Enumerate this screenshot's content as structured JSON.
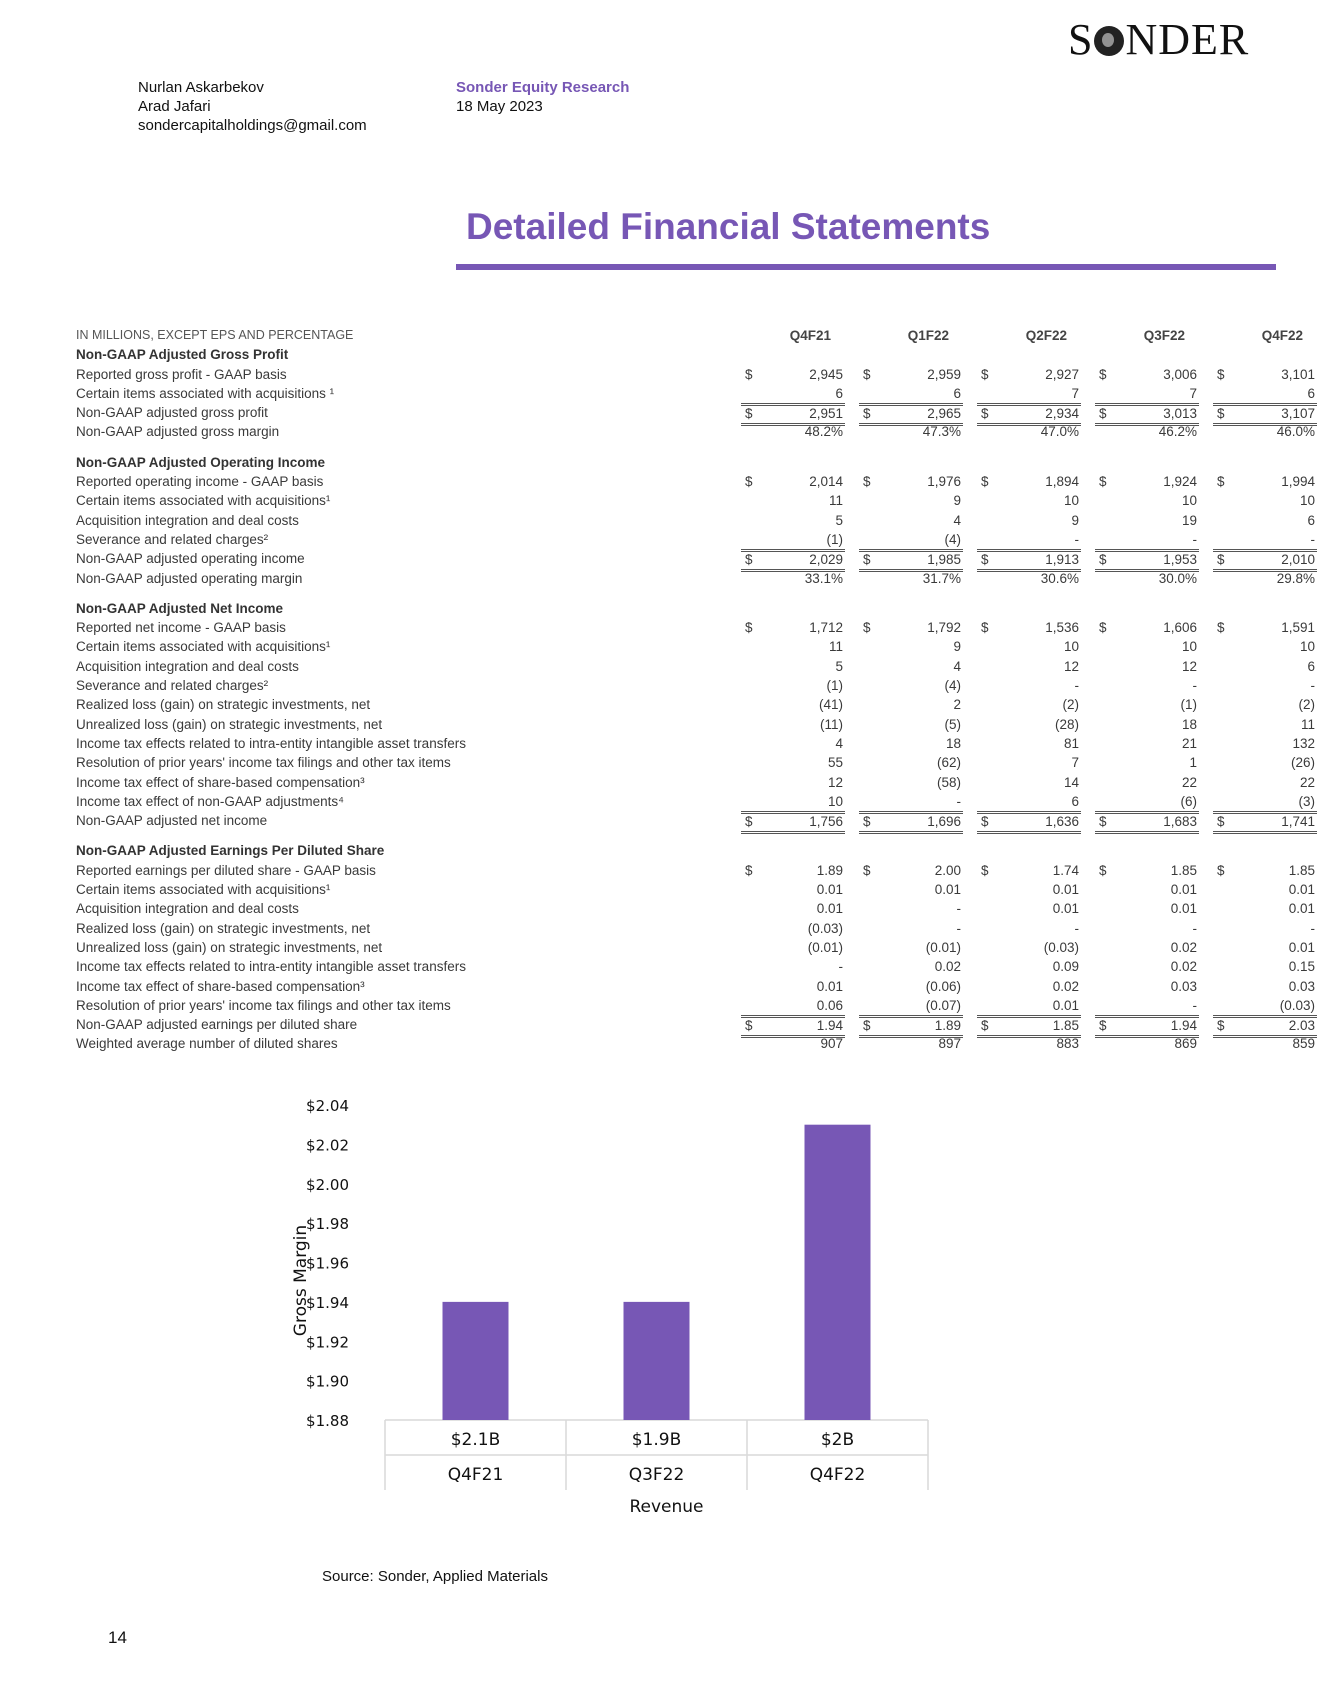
{
  "logo": {
    "text_left": "S",
    "text_right": "NDER"
  },
  "header": {
    "authors": [
      "Nurlan Askarbekov",
      "Arad Jafari",
      "sondercapitalholdings@gmail.com"
    ],
    "brand": "Sonder Equity Research",
    "date": "18 May 2023"
  },
  "title": "Detailed Financial Statements",
  "table": {
    "units_label": "IN MILLIONS, EXCEPT EPS AND PERCENTAGE",
    "quarters": [
      "Q4F21",
      "Q1F22",
      "Q2F22",
      "Q3F22",
      "Q4F22"
    ],
    "sections": [
      {
        "heading": "Non-GAAP Adjusted Gross Profit",
        "rows": [
          {
            "label": "Reported gross profit - GAAP basis",
            "values": [
              "2,945",
              "2,959",
              "2,927",
              "3,006",
              "3,101"
            ],
            "dollar": true
          },
          {
            "label": "Certain items associated with acquisitions ¹",
            "values": [
              "6",
              "6",
              "7",
              "7",
              "6"
            ],
            "style": "ul"
          },
          {
            "label": "Non-GAAP adjusted gross profit",
            "values": [
              "2,951",
              "2,965",
              "2,934",
              "3,013",
              "3,107"
            ],
            "dollar": true,
            "style": "tot"
          },
          {
            "label": "Non-GAAP adjusted gross margin",
            "values": [
              "48.2%",
              "47.3%",
              "47.0%",
              "46.2%",
              "46.0%"
            ]
          }
        ]
      },
      {
        "heading": "Non-GAAP Adjusted Operating Income",
        "rows": [
          {
            "label": "Reported operating income - GAAP basis",
            "values": [
              "2,014",
              "1,976",
              "1,894",
              "1,924",
              "1,994"
            ],
            "dollar": true
          },
          {
            "label": "Certain items associated with acquisitions¹",
            "values": [
              "11",
              "9",
              "10",
              "10",
              "10"
            ]
          },
          {
            "label": "Acquisition integration and deal costs",
            "values": [
              "5",
              "4",
              "9",
              "19",
              "6"
            ]
          },
          {
            "label": "Severance and related charges²",
            "values": [
              "(1)",
              "(4)",
              "-",
              "-",
              "-"
            ],
            "style": "ul"
          },
          {
            "label": "Non-GAAP adjusted operating income",
            "values": [
              "2,029",
              "1,985",
              "1,913",
              "1,953",
              "2,010"
            ],
            "dollar": true,
            "style": "tot"
          },
          {
            "label": "Non-GAAP adjusted operating margin",
            "values": [
              "33.1%",
              "31.7%",
              "30.6%",
              "30.0%",
              "29.8%"
            ]
          }
        ]
      },
      {
        "heading": "Non-GAAP Adjusted Net Income",
        "rows": [
          {
            "label": "Reported net income - GAAP basis",
            "values": [
              "1,712",
              "1,792",
              "1,536",
              "1,606",
              "1,591"
            ],
            "dollar": true
          },
          {
            "label": "Certain items associated with acquisitions¹",
            "values": [
              "11",
              "9",
              "10",
              "10",
              "10"
            ]
          },
          {
            "label": "Acquisition integration and deal costs",
            "values": [
              "5",
              "4",
              "12",
              "12",
              "6"
            ]
          },
          {
            "label": "Severance and related charges²",
            "values": [
              "(1)",
              "(4)",
              "-",
              "-",
              "-"
            ]
          },
          {
            "label": "Realized loss (gain) on strategic investments, net",
            "values": [
              "(41)",
              "2",
              "(2)",
              "(1)",
              "(2)"
            ]
          },
          {
            "label": "Unrealized loss (gain) on strategic investments, net",
            "values": [
              "(11)",
              "(5)",
              "(28)",
              "18",
              "11"
            ]
          },
          {
            "label": "Income tax effects related to intra-entity intangible asset transfers",
            "values": [
              "4",
              "18",
              "81",
              "21",
              "132"
            ]
          },
          {
            "label": "Resolution of prior years' income tax filings and other tax items",
            "values": [
              "55",
              "(62)",
              "7",
              "1",
              "(26)"
            ]
          },
          {
            "label": "Income tax effect of share-based compensation³",
            "values": [
              "12",
              "(58)",
              "14",
              "22",
              "22"
            ]
          },
          {
            "label": "Income tax effect of non-GAAP adjustments⁴",
            "values": [
              "10",
              "-",
              "6",
              "(6)",
              "(3)"
            ],
            "style": "ul"
          },
          {
            "label": "Non-GAAP adjusted net income",
            "values": [
              "1,756",
              "1,696",
              "1,636",
              "1,683",
              "1,741"
            ],
            "dollar": true,
            "style": "tot"
          }
        ]
      },
      {
        "heading": "Non-GAAP Adjusted Earnings Per Diluted Share",
        "rows": [
          {
            "label": "Reported earnings per diluted share - GAAP basis",
            "values": [
              "1.89",
              "2.00",
              "1.74",
              "1.85",
              "1.85"
            ],
            "dollar": true
          },
          {
            "label": "Certain items associated with acquisitions¹",
            "values": [
              "0.01",
              "0.01",
              "0.01",
              "0.01",
              "0.01"
            ]
          },
          {
            "label": "Acquisition integration and deal costs",
            "values": [
              "0.01",
              "-",
              "0.01",
              "0.01",
              "0.01"
            ]
          },
          {
            "label": "Realized loss (gain) on strategic investments, net",
            "values": [
              "(0.03)",
              "-",
              "-",
              "-",
              "-"
            ]
          },
          {
            "label": "Unrealized loss (gain) on strategic investments, net",
            "values": [
              "(0.01)",
              "(0.01)",
              "(0.03)",
              "0.02",
              "0.01"
            ]
          },
          {
            "label": "Income tax effects related to intra-entity intangible asset transfers",
            "values": [
              "-",
              "0.02",
              "0.09",
              "0.02",
              "0.15"
            ]
          },
          {
            "label": "Income tax effect of share-based compensation³",
            "values": [
              "0.01",
              "(0.06)",
              "0.02",
              "0.03",
              "0.03"
            ]
          },
          {
            "label": "Resolution of prior years' income tax filings and other tax items",
            "values": [
              "0.06",
              "(0.07)",
              "0.01",
              "-",
              "(0.03)"
            ],
            "style": "ul"
          },
          {
            "label": "Non-GAAP adjusted earnings per diluted share",
            "values": [
              "1.94",
              "1.89",
              "1.85",
              "1.94",
              "2.03"
            ],
            "dollar": true,
            "style": "tot"
          },
          {
            "label": "Weighted average number of diluted shares",
            "values": [
              "907",
              "897",
              "883",
              "869",
              "859"
            ]
          }
        ]
      }
    ]
  },
  "chart_data": {
    "type": "bar",
    "categories": [
      "Q4F21",
      "Q3F22",
      "Q4F22"
    ],
    "category_sublabels": [
      "$2.1B",
      "$1.9B",
      "$2B"
    ],
    "values": [
      1.94,
      1.94,
      2.03
    ],
    "title": "",
    "xlabel": "Revenue",
    "ylabel": "Gross Margin",
    "ylim": [
      1.88,
      2.04
    ],
    "yticks": [
      "$1.88",
      "$1.90",
      "$1.92",
      "$1.94",
      "$1.96",
      "$1.98",
      "$2.00",
      "$2.02",
      "$2.04"
    ],
    "ytick_values": [
      1.88,
      1.9,
      1.92,
      1.94,
      1.96,
      1.98,
      2.0,
      2.02,
      2.04
    ],
    "bar_color": "#7757b5",
    "grid": false,
    "legend": "none"
  },
  "source": "Source: Sonder, Applied Materials",
  "page_number": "14",
  "colors": {
    "accent": "#7757b5",
    "text": "#3a3a3a"
  }
}
